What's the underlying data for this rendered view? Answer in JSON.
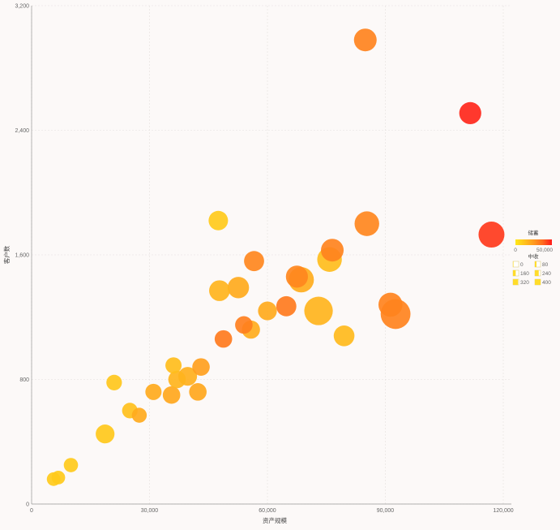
{
  "chart_data": {
    "type": "scatter",
    "xlabel": "资产规模",
    "ylabel": "客户数",
    "xlim": [
      0,
      120000
    ],
    "ylim": [
      0,
      3200
    ],
    "x_ticks": [
      "0",
      "30,000",
      "60,000",
      "90,000",
      "120,000"
    ],
    "y_ticks": [
      "0",
      "800",
      "1,600",
      "2,400",
      "3,200"
    ],
    "grid": true,
    "legend_position": "right",
    "color_legend": {
      "title": "储蓄",
      "min_label": "0",
      "max_label": "50,000",
      "colors": [
        "#ffe818",
        "#ffc21c",
        "#ff9a1e",
        "#ff6a1e",
        "#ff1a1a"
      ]
    },
    "size_legend": {
      "title": "中收",
      "labels": [
        "0",
        "80",
        "160",
        "240",
        "320",
        "400"
      ]
    },
    "points": [
      {
        "x": 5600,
        "y": 160,
        "size": 110,
        "color": 10000
      },
      {
        "x": 6800,
        "y": 170,
        "size": 110,
        "color": 10000
      },
      {
        "x": 10000,
        "y": 250,
        "size": 120,
        "color": 10000
      },
      {
        "x": 18700,
        "y": 450,
        "size": 190,
        "color": 10500
      },
      {
        "x": 21000,
        "y": 780,
        "size": 140,
        "color": 11000
      },
      {
        "x": 25000,
        "y": 600,
        "size": 140,
        "color": 13000
      },
      {
        "x": 27400,
        "y": 570,
        "size": 130,
        "color": 20000
      },
      {
        "x": 31000,
        "y": 720,
        "size": 150,
        "color": 20000
      },
      {
        "x": 35600,
        "y": 700,
        "size": 170,
        "color": 21000
      },
      {
        "x": 36100,
        "y": 890,
        "size": 150,
        "color": 14000
      },
      {
        "x": 37000,
        "y": 800,
        "size": 170,
        "color": 17000
      },
      {
        "x": 39700,
        "y": 820,
        "size": 190,
        "color": 18000
      },
      {
        "x": 42300,
        "y": 720,
        "size": 170,
        "color": 21000
      },
      {
        "x": 43100,
        "y": 880,
        "size": 170,
        "color": 23000
      },
      {
        "x": 47500,
        "y": 1820,
        "size": 200,
        "color": 10000
      },
      {
        "x": 47800,
        "y": 1370,
        "size": 220,
        "color": 17000
      },
      {
        "x": 48800,
        "y": 1060,
        "size": 170,
        "color": 33000
      },
      {
        "x": 52600,
        "y": 1390,
        "size": 230,
        "color": 20000
      },
      {
        "x": 54000,
        "y": 1150,
        "size": 170,
        "color": 32000
      },
      {
        "x": 55800,
        "y": 1120,
        "size": 180,
        "color": 19000
      },
      {
        "x": 56600,
        "y": 1560,
        "size": 210,
        "color": 30000
      },
      {
        "x": 60000,
        "y": 1240,
        "size": 190,
        "color": 20000
      },
      {
        "x": 64800,
        "y": 1270,
        "size": 210,
        "color": 33000
      },
      {
        "x": 67500,
        "y": 1460,
        "size": 240,
        "color": 30000
      },
      {
        "x": 68600,
        "y": 1440,
        "size": 290,
        "color": 19000
      },
      {
        "x": 73000,
        "y": 1240,
        "size": 340,
        "color": 17000
      },
      {
        "x": 75800,
        "y": 1570,
        "size": 280,
        "color": 14000
      },
      {
        "x": 76500,
        "y": 1630,
        "size": 250,
        "color": 31000
      },
      {
        "x": 79500,
        "y": 1080,
        "size": 220,
        "color": 15000
      },
      {
        "x": 84900,
        "y": 2980,
        "size": 250,
        "color": 31000
      },
      {
        "x": 85300,
        "y": 1800,
        "size": 280,
        "color": 30000
      },
      {
        "x": 91300,
        "y": 1280,
        "size": 270,
        "color": 31000
      },
      {
        "x": 92600,
        "y": 1220,
        "size": 360,
        "color": 31000
      },
      {
        "x": 111600,
        "y": 2510,
        "size": 240,
        "color": 48000
      },
      {
        "x": 117000,
        "y": 1730,
        "size": 300,
        "color": 45000
      }
    ]
  }
}
